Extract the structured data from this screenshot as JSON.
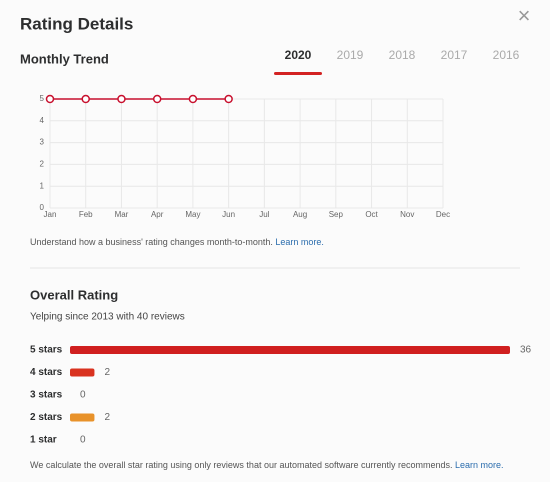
{
  "header": {
    "title": "Rating Details",
    "close": "×"
  },
  "trend": {
    "title": "Monthly Trend",
    "tabs": [
      "2020",
      "2019",
      "2018",
      "2017",
      "2016"
    ],
    "active_tab": 0,
    "note": "Understand how a business' rating changes month-to-month. ",
    "link": "Learn more."
  },
  "overall": {
    "title": "Overall Rating",
    "subtitle": "Yelping since 2013 with 40 reviews",
    "note": "We calculate the overall star rating using only reviews that our automated software currently recommends. ",
    "link": "Learn more."
  },
  "chart_data": [
    {
      "type": "line",
      "categories": [
        "Jan",
        "Feb",
        "Mar",
        "Apr",
        "May",
        "Jun",
        "Jul",
        "Aug",
        "Sep",
        "Oct",
        "Nov",
        "Dec"
      ],
      "values": [
        5,
        5,
        5,
        5,
        5,
        5,
        null,
        null,
        null,
        null,
        null,
        null
      ],
      "color": "#c8102e",
      "ylim": [
        0,
        5
      ],
      "yticks": [
        0,
        1,
        2,
        3,
        4,
        5
      ],
      "grid": true
    },
    {
      "type": "bar",
      "categories": [
        "5 stars",
        "4 stars",
        "3 stars",
        "2 stars",
        "1 star"
      ],
      "values": [
        36,
        2,
        0,
        2,
        0
      ],
      "colors": [
        "#d01f1f",
        "#d9321f",
        "#e0581f",
        "#e8922a",
        "#e8b23a"
      ],
      "xlim": [
        0,
        36
      ]
    }
  ]
}
